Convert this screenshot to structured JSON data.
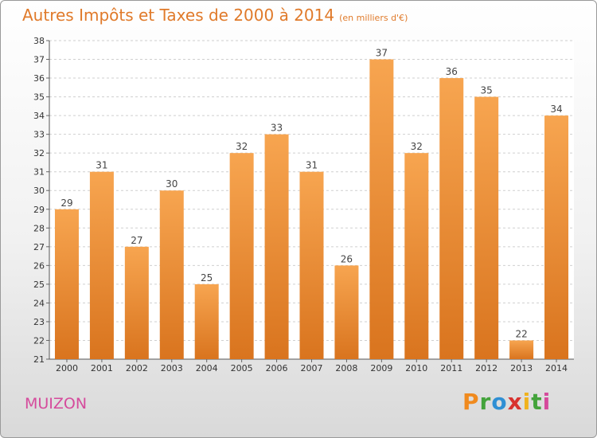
{
  "header": {
    "title": "Autres Impôts et Taxes de 2000 à 2014",
    "unit": "(en milliers d'€)"
  },
  "footer": {
    "town": "MUIZON",
    "brand": "Proxiti"
  },
  "colors": {
    "bar_light": "#f7a550",
    "bar_dark": "#d9741e",
    "title": "#e07a2a",
    "town": "#d54b9c"
  },
  "chart_data": {
    "type": "bar",
    "title": "Autres Impôts et Taxes de 2000 à 2014",
    "xlabel": "",
    "ylabel": "",
    "categories": [
      "2000",
      "2001",
      "2002",
      "2003",
      "2004",
      "2005",
      "2006",
      "2007",
      "2008",
      "2009",
      "2010",
      "2011",
      "2012",
      "2013",
      "2014"
    ],
    "values": [
      29,
      31,
      27,
      30,
      25,
      32,
      33,
      31,
      26,
      37,
      32,
      36,
      35,
      22,
      34
    ],
    "ylim": [
      21,
      38
    ],
    "yticks": [
      21,
      22,
      23,
      24,
      25,
      26,
      27,
      28,
      29,
      30,
      31,
      32,
      33,
      34,
      35,
      36,
      37,
      38
    ],
    "grid": true,
    "legend": "none"
  }
}
